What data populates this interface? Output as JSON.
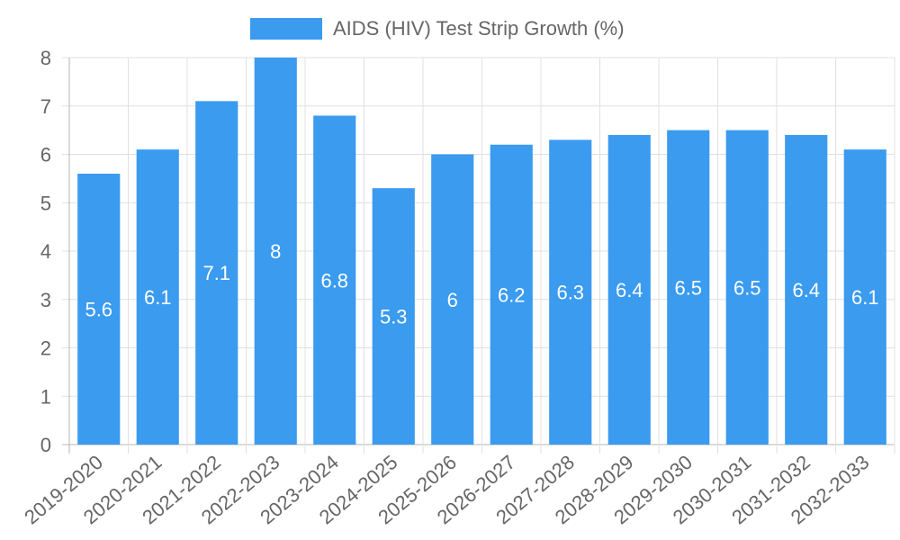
{
  "chart_data": {
    "type": "bar",
    "title": "",
    "xlabel": "",
    "ylabel": "",
    "ylim": [
      0,
      8
    ],
    "y_ticks": [
      "0",
      "1",
      "2",
      "3",
      "4",
      "5",
      "6",
      "7",
      "8"
    ],
    "legend": {
      "position": "top-center"
    },
    "series": [
      {
        "name": "AIDS (HIV) Test Strip Growth (%)",
        "color": "#3a9bef",
        "values": [
          5.6,
          6.1,
          7.1,
          8,
          6.8,
          5.3,
          6,
          6.2,
          6.3,
          6.4,
          6.5,
          6.5,
          6.4,
          6.1
        ],
        "labels": [
          "5.6",
          "6.1",
          "7.1",
          "8",
          "6.8",
          "5.3",
          "6",
          "6.2",
          "6.3",
          "6.4",
          "6.5",
          "6.5",
          "6.4",
          "6.1"
        ]
      }
    ],
    "categories": [
      "2019-2020",
      "2020-2021",
      "2021-2022",
      "2022-2023",
      "2023-2024",
      "2024-2025",
      "2025-2026",
      "2026-2027",
      "2027-2028",
      "2028-2029",
      "2029-2030",
      "2030-2031",
      "2031-2032",
      "2032-2033"
    ],
    "grid": true
  }
}
